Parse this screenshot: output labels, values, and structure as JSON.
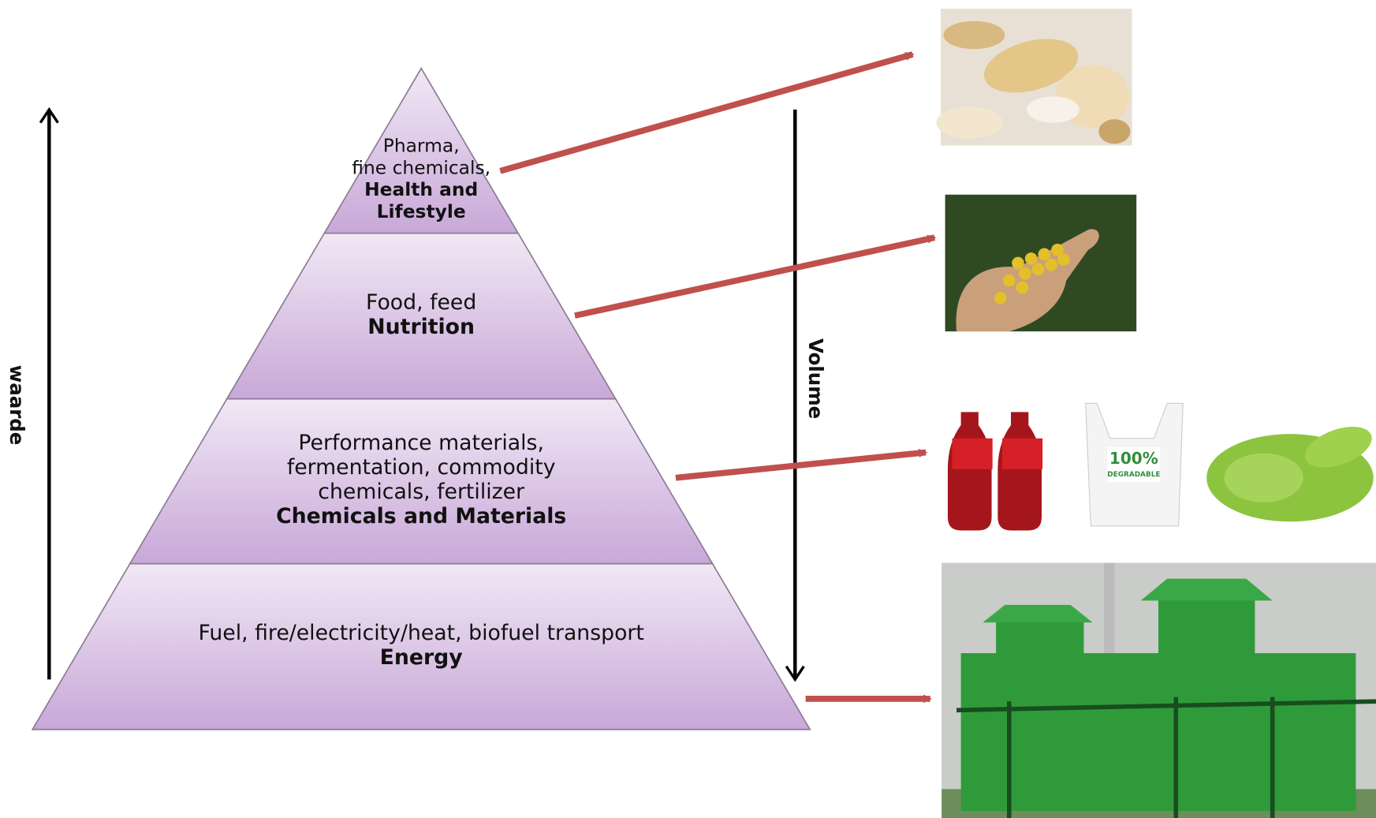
{
  "axes": {
    "left": "waarde",
    "right": "Volume"
  },
  "levels": [
    {
      "description": [
        "Pharma,",
        "fine chemicals,"
      ],
      "category": [
        "Health and",
        "Lifestyle"
      ]
    },
    {
      "description": [
        "Food, feed"
      ],
      "category": [
        "Nutrition"
      ]
    },
    {
      "description": [
        "Performance materials,",
        "fermentation, commodity",
        "chemicals, fertilizer"
      ],
      "category": [
        "Chemicals and Materials"
      ]
    },
    {
      "description": [
        "Fuel, fire/electricity/heat, biofuel transport"
      ],
      "category": [
        "Energy"
      ]
    }
  ],
  "images": {
    "bag_label": [
      "100%",
      "DEGRADABLE"
    ]
  }
}
